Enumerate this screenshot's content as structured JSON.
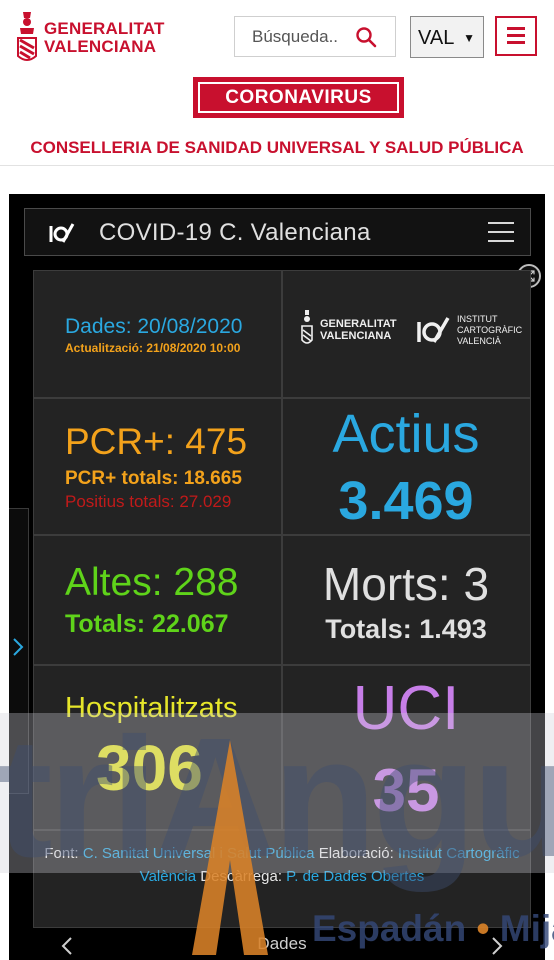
{
  "header": {
    "logo_line1": "GENERALITAT",
    "logo_line2": "VALENCIANA",
    "search_placeholder": "Búsqueda..",
    "language": "VAL",
    "brand_color": "#c8102e"
  },
  "banner": {
    "coronavirus": "CORONAVIRUS",
    "conselleria": "CONSELLERIA DE SANIDAD UNIVERSAL Y SALUD PÚBLICA"
  },
  "dashboard": {
    "title": "COVID-19 C. Valenciana",
    "date": "Dades: 20/08/2020",
    "updated": "Actualització: 21/08/2020 10:00",
    "org_gv_line1": "GENERALITAT",
    "org_gv_line2": "VALENCIANA",
    "org_icv_line1": "INSTITUT",
    "org_icv_line2": "CARTOGRÀFIC",
    "org_icv_line3": "VALENCIÀ",
    "pcr": "PCR+: 475",
    "pcr_totals": "PCR+ totals: 18.665",
    "positius_totals": "Positius totals: 27.029",
    "actius_label": "Actius",
    "actius_value": "3.469",
    "altes": "Altes: 288",
    "altes_totals": "Totals: 22.067",
    "morts": "Morts: 3",
    "morts_totals": "Totals: 1.493",
    "hospitalitzats_label": "Hospitalitzats",
    "hospitalitzats_value": "306",
    "uci_label": "UCI",
    "uci_value": "35",
    "source": {
      "font_label": "Font:",
      "font_link": "C. Sanitat Universal i Salut Pública",
      "elab_label": "Elaboració:",
      "elab_link": "Institut Cartogràfic València",
      "desc_label": "Descàrrega:",
      "desc_link": "P. de Dades Obertes"
    },
    "bottom_tab": "Dades",
    "colors": {
      "blue": "#2aa8e0",
      "orange": "#f3a21b",
      "red": "#c11a1a",
      "green": "#5fd31a",
      "yellow": "#e6e62a",
      "purple": "#c77ee8"
    }
  },
  "watermark": {
    "word": "triAngu",
    "sub_left": "Espadán",
    "sub_sep": "•",
    "sub_right": "Mija"
  },
  "icons": [
    "search-icon",
    "chevron-down-icon",
    "hamburger-icon",
    "icv-logo-icon",
    "expand-icon",
    "chevron-right-icon",
    "chevron-left-icon",
    "gv-crest-icon"
  ]
}
